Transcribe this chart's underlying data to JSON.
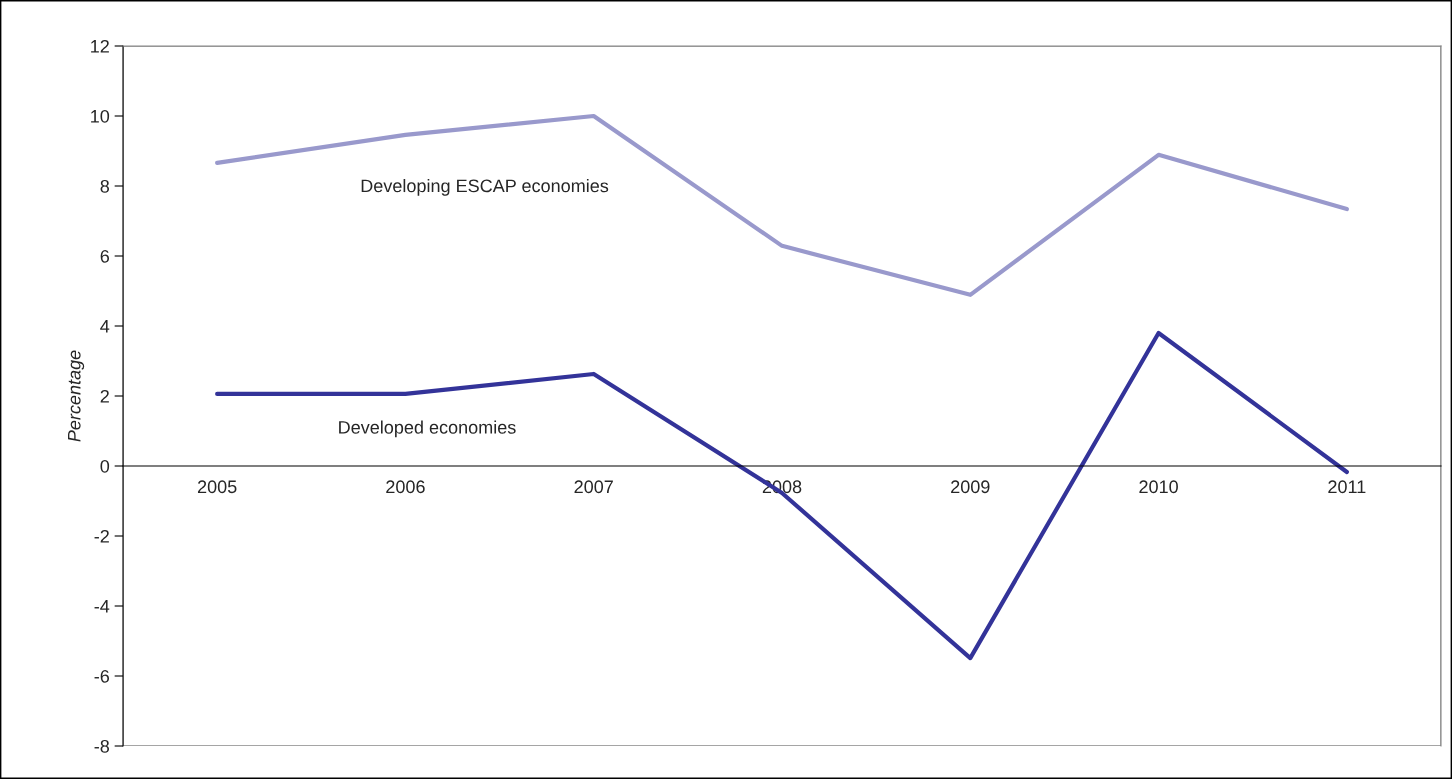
{
  "chart_data": {
    "type": "line",
    "ylabel": "Percentage",
    "categories": [
      "2005",
      "2006",
      "2007",
      "2008",
      "2009",
      "2010",
      "2011"
    ],
    "series": [
      {
        "name": "Developing ESCAP economies",
        "color": "#9999cc",
        "values": [
          8.66,
          9.46,
          10.0,
          6.29,
          4.89,
          8.89,
          7.34
        ]
      },
      {
        "name": "Developed economies",
        "color": "#333399",
        "values": [
          2.06,
          2.06,
          2.63,
          -0.77,
          -5.49,
          3.8,
          -0.17
        ]
      }
    ],
    "ylim": [
      -8,
      12
    ],
    "yticks": [
      -8,
      -6,
      -4,
      -2,
      0,
      2,
      4,
      6,
      8,
      10,
      12
    ],
    "grid": false,
    "legend": false,
    "marker": "none",
    "line_style": "solid"
  }
}
